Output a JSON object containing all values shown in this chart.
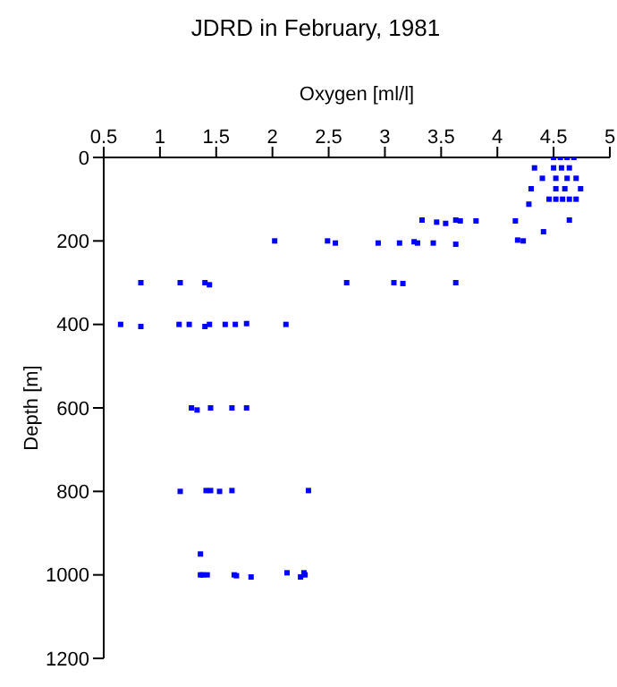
{
  "chart_data": {
    "type": "scatter",
    "title": "JDRD in February, 1981",
    "xlabel": "Oxygen [ml/l]",
    "ylabel": "Depth [m]",
    "xlim": [
      0.5,
      5
    ],
    "xticks": [
      0.5,
      1,
      1.5,
      2,
      2.5,
      3,
      3.5,
      4,
      4.5,
      5
    ],
    "ylim": [
      1200,
      0
    ],
    "yticks": [
      0,
      200,
      400,
      600,
      800,
      1000,
      1200
    ],
    "marker": "square",
    "series": [
      {
        "color": "#0000ff",
        "x": [
          4.5,
          4.56,
          4.62,
          4.68,
          4.33,
          4.5,
          4.57,
          4.64,
          4.4,
          4.52,
          4.62,
          4.7,
          4.3,
          4.52,
          4.6,
          4.74,
          4.46,
          4.52,
          4.58,
          4.64,
          4.7,
          4.28,
          4.64,
          4.41,
          3.33,
          3.46,
          3.54,
          3.63,
          3.67,
          3.81,
          4.16,
          2.02,
          2.49,
          2.56,
          2.94,
          3.13,
          3.26,
          3.29,
          3.43,
          3.63,
          4.18,
          4.23,
          0.83,
          1.18,
          1.4,
          1.44,
          2.66,
          3.08,
          3.16,
          3.63,
          0.65,
          0.83,
          1.17,
          1.26,
          1.4,
          1.44,
          1.58,
          1.67,
          1.77,
          2.12,
          1.28,
          1.33,
          1.45,
          1.64,
          1.77,
          1.18,
          1.41,
          1.45,
          1.53,
          1.64,
          2.32,
          1.36,
          1.36,
          1.38,
          1.42,
          1.66,
          1.68,
          1.81,
          2.13,
          2.25,
          2.28,
          2.29
        ],
        "values": [
          0,
          0,
          0,
          0,
          25,
          25,
          25,
          25,
          50,
          50,
          50,
          50,
          75,
          75,
          75,
          75,
          100,
          100,
          100,
          100,
          100,
          112,
          150,
          178,
          150,
          155,
          158,
          150,
          152,
          152,
          152,
          200,
          200,
          205,
          205,
          205,
          202,
          205,
          205,
          208,
          198,
          200,
          300,
          300,
          300,
          305,
          300,
          300,
          302,
          300,
          400,
          405,
          400,
          400,
          405,
          400,
          400,
          400,
          398,
          400,
          600,
          605,
          600,
          600,
          600,
          800,
          798,
          798,
          800,
          798,
          798,
          950,
          1000,
          1000,
          1000,
          1000,
          1002,
          1005,
          995,
          1005,
          995,
          1000
        ]
      }
    ]
  }
}
